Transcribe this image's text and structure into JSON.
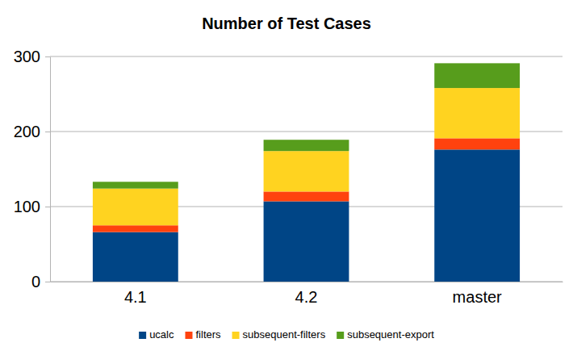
{
  "chart_data": {
    "type": "bar",
    "title": "Number of Test Cases",
    "categories": [
      "4.1",
      "4.2",
      "master"
    ],
    "series": [
      {
        "name": "ucalc",
        "color": "#004586",
        "values": [
          66,
          107,
          176
        ]
      },
      {
        "name": "filters",
        "color": "#ff420e",
        "values": [
          9,
          13,
          15
        ]
      },
      {
        "name": "subsequent-filters",
        "color": "#ffd320",
        "values": [
          49,
          54,
          67
        ]
      },
      {
        "name": "subsequent-export",
        "color": "#579d1c",
        "values": [
          9,
          15,
          33
        ]
      }
    ],
    "ylim": [
      0,
      300
    ],
    "yticks": [
      0,
      100,
      200,
      300
    ],
    "grid": true,
    "stacked": true,
    "legend": "bottom"
  }
}
